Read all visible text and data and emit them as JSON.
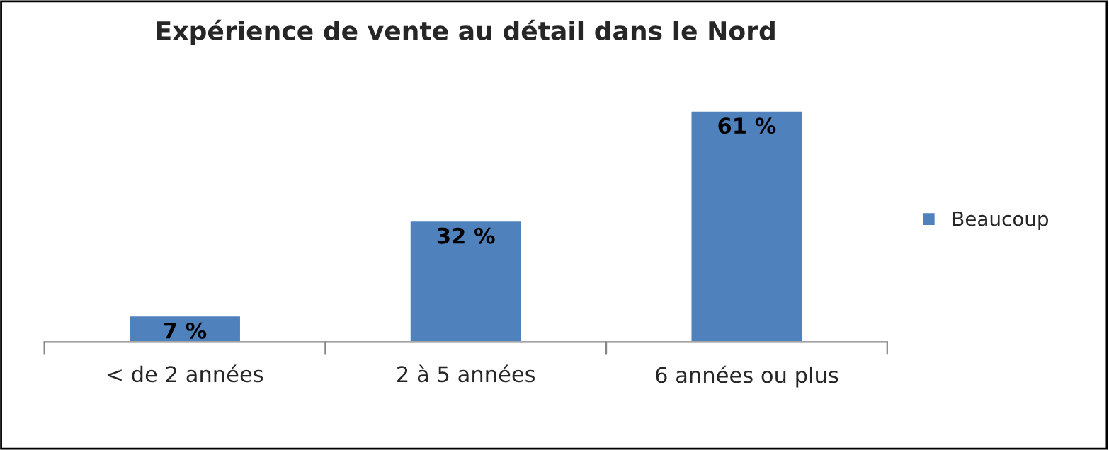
{
  "chart_data": {
    "type": "bar",
    "title": "Expérience de vente au détail dans le Nord",
    "categories": [
      "< de 2 années",
      "2 à 5 années",
      "6 années ou plus"
    ],
    "series": [
      {
        "name": "Beaucoup",
        "color": "#4f81bd",
        "values": [
          7,
          32,
          61
        ],
        "value_labels": [
          "7 %",
          "32 %",
          "61 %"
        ]
      }
    ],
    "tick_labels": "x",
    "grid": false,
    "legend": "right"
  }
}
